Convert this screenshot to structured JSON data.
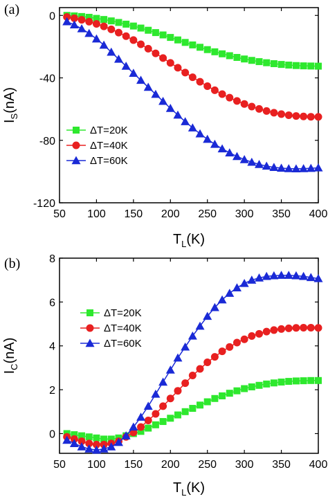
{
  "chart_data": [
    {
      "panel_label": "(a)",
      "type": "line",
      "xlabel": {
        "main": "T",
        "sub": "L",
        "tail": "(K)"
      },
      "ylabel": {
        "main": "I",
        "sub": "S",
        "tail": "(nA)"
      },
      "xlim": [
        50,
        400
      ],
      "ylim": [
        -120,
        5
      ],
      "xticks": [
        50,
        100,
        150,
        200,
        250,
        300,
        350,
        400
      ],
      "yticks": [
        0,
        -40,
        -80,
        -120
      ],
      "legend_position": "center-left",
      "x": [
        60,
        70,
        80,
        90,
        100,
        110,
        120,
        130,
        140,
        150,
        160,
        170,
        180,
        190,
        200,
        210,
        220,
        230,
        240,
        250,
        260,
        270,
        280,
        290,
        300,
        310,
        320,
        330,
        340,
        350,
        360,
        370,
        380,
        390,
        400
      ],
      "series": [
        {
          "name": "ΔT=20K",
          "color": "#2ee82e",
          "marker": "square",
          "values": [
            0,
            -0.3,
            -0.7,
            -1.2,
            -1.9,
            -2.6,
            -3.5,
            -4.5,
            -5.6,
            -6.8,
            -8.1,
            -9.5,
            -11.0,
            -12.5,
            -14.1,
            -15.7,
            -17.3,
            -18.9,
            -20.4,
            -21.9,
            -23.3,
            -24.6,
            -25.8,
            -26.9,
            -27.9,
            -28.8,
            -29.6,
            -30.3,
            -30.9,
            -31.4,
            -31.8,
            -32.1,
            -32.3,
            -32.4,
            -32.5
          ]
        },
        {
          "name": "ΔT=40K",
          "color": "#e82020",
          "marker": "circle",
          "values": [
            -1,
            -1.8,
            -2.8,
            -4.0,
            -5.4,
            -7.0,
            -8.9,
            -11.0,
            -13.3,
            -15.8,
            -18.5,
            -21.3,
            -24.3,
            -27.3,
            -30.4,
            -33.5,
            -36.6,
            -39.6,
            -42.5,
            -45.3,
            -47.9,
            -50.4,
            -52.7,
            -54.8,
            -56.7,
            -58.4,
            -59.9,
            -61.2,
            -62.3,
            -63.2,
            -63.9,
            -64.4,
            -64.7,
            -64.9,
            -65.0
          ]
        },
        {
          "name": "ΔT=60K",
          "color": "#1a2ad6",
          "marker": "triangle",
          "values": [
            -4,
            -6,
            -8.5,
            -11.5,
            -15,
            -19,
            -23.5,
            -28,
            -32.5,
            -37,
            -41.5,
            -46,
            -50.5,
            -55,
            -59.5,
            -63.8,
            -68,
            -72,
            -75.8,
            -79.3,
            -82.5,
            -85.4,
            -88,
            -90.3,
            -92.3,
            -94,
            -95.4,
            -96.5,
            -97.3,
            -97.8,
            -98.1,
            -98.2,
            -98.1,
            -97.9,
            -97.6
          ]
        }
      ]
    },
    {
      "panel_label": "(b)",
      "type": "line",
      "xlabel": {
        "main": "T",
        "sub": "L",
        "tail": "(K)"
      },
      "ylabel": {
        "main": "I",
        "sub": "C",
        "tail": "(nA)"
      },
      "xlim": [
        50,
        400
      ],
      "ylim": [
        -0.9,
        8
      ],
      "xticks": [
        50,
        100,
        150,
        200,
        250,
        300,
        350,
        400
      ],
      "yticks": [
        0,
        2,
        4,
        6,
        8
      ],
      "legend_position": "center-left",
      "x": [
        60,
        70,
        80,
        90,
        100,
        110,
        120,
        130,
        140,
        150,
        160,
        170,
        180,
        190,
        200,
        210,
        220,
        230,
        240,
        250,
        260,
        270,
        280,
        290,
        300,
        310,
        320,
        330,
        340,
        350,
        360,
        370,
        380,
        390,
        400
      ],
      "series": [
        {
          "name": "ΔT=20K",
          "color": "#2ee82e",
          "marker": "square",
          "values": [
            0.0,
            -0.05,
            -0.1,
            -0.15,
            -0.2,
            -0.25,
            -0.25,
            -0.2,
            -0.1,
            0.0,
            0.1,
            0.25,
            0.4,
            0.55,
            0.7,
            0.85,
            1.0,
            1.15,
            1.3,
            1.45,
            1.6,
            1.72,
            1.84,
            1.95,
            2.05,
            2.13,
            2.2,
            2.26,
            2.31,
            2.35,
            2.38,
            2.4,
            2.41,
            2.42,
            2.42
          ]
        },
        {
          "name": "ΔT=40K",
          "color": "#e82020",
          "marker": "circle",
          "values": [
            -0.15,
            -0.25,
            -0.35,
            -0.45,
            -0.5,
            -0.5,
            -0.45,
            -0.35,
            -0.15,
            0.05,
            0.3,
            0.6,
            0.9,
            1.25,
            1.6,
            1.95,
            2.3,
            2.65,
            2.95,
            3.25,
            3.5,
            3.75,
            3.95,
            4.15,
            4.3,
            4.45,
            4.55,
            4.65,
            4.72,
            4.77,
            4.8,
            4.82,
            4.83,
            4.83,
            4.82
          ]
        },
        {
          "name": "ΔT=60K",
          "color": "#1a2ad6",
          "marker": "triangle",
          "values": [
            -0.3,
            -0.45,
            -0.6,
            -0.7,
            -0.75,
            -0.7,
            -0.6,
            -0.4,
            -0.1,
            0.3,
            0.75,
            1.25,
            1.8,
            2.35,
            2.9,
            3.45,
            3.95,
            4.45,
            4.9,
            5.35,
            5.75,
            6.1,
            6.4,
            6.65,
            6.85,
            7.0,
            7.1,
            7.17,
            7.2,
            7.22,
            7.22,
            7.2,
            7.17,
            7.12,
            7.07
          ]
        }
      ]
    }
  ]
}
